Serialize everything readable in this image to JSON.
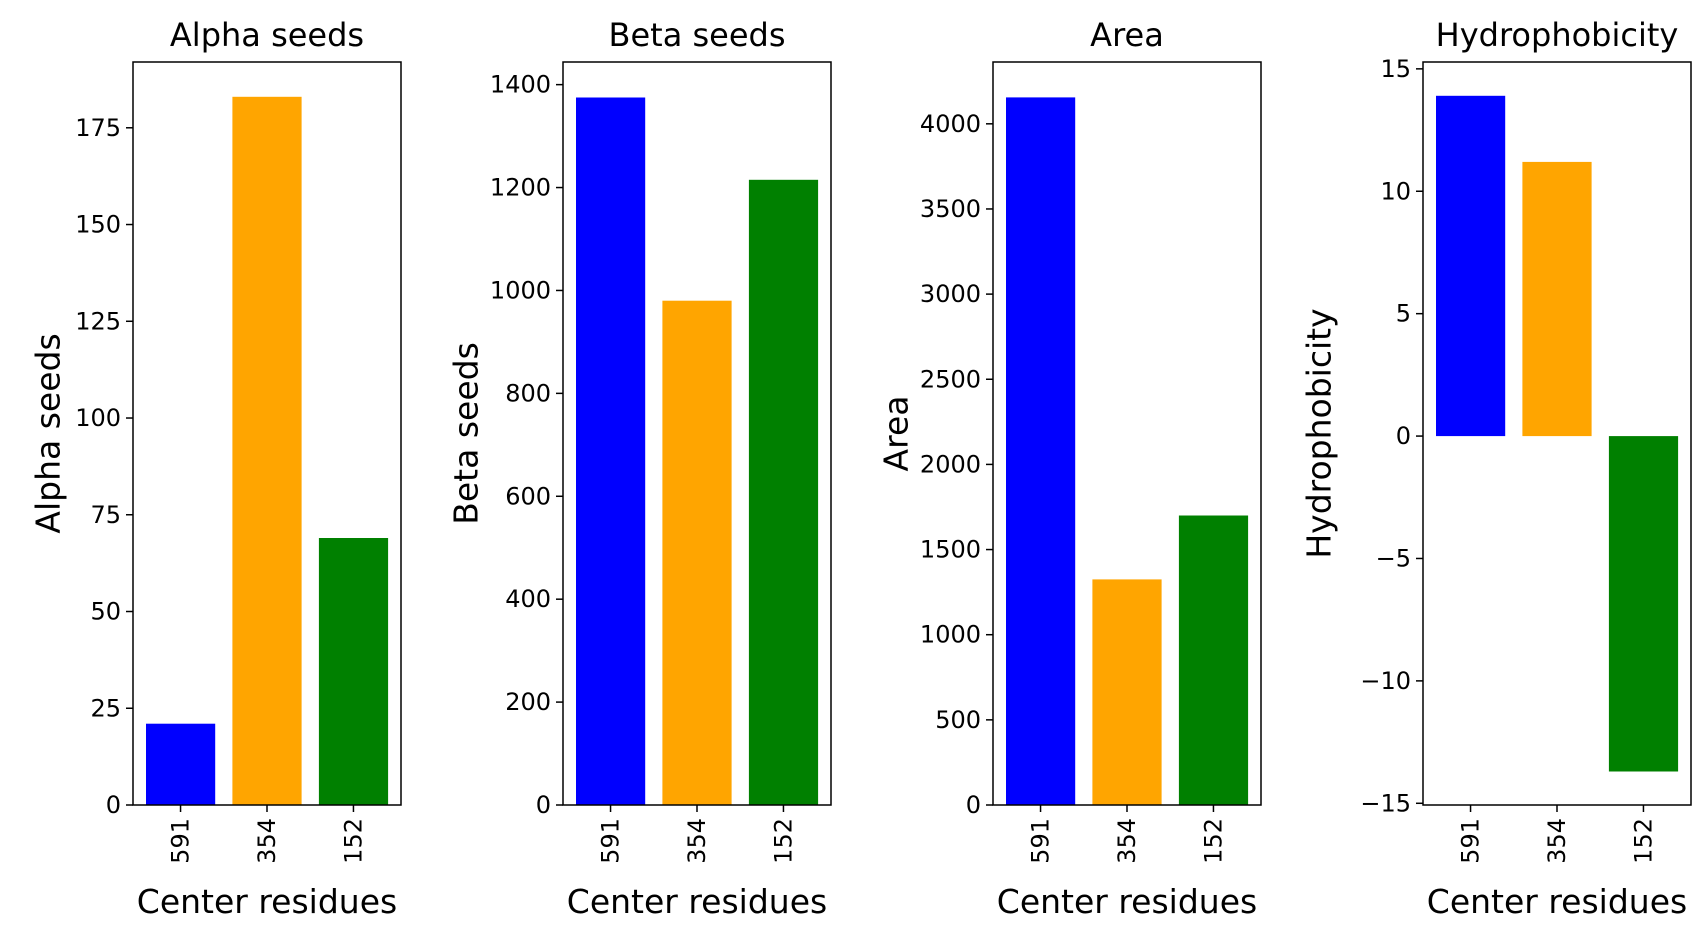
{
  "colors": {
    "bar_1": "#0000ff",
    "bar_2": "#ffa500",
    "bar_3": "#008000",
    "axis": "#000000"
  },
  "chart_data": [
    {
      "type": "bar",
      "title": "Alpha seeds",
      "xlabel": "Center residues",
      "ylabel": "Alpha seeds",
      "categories": [
        "591",
        "354",
        "152"
      ],
      "values": [
        21,
        183,
        69
      ],
      "ylim": [
        0,
        192
      ],
      "yticks": [
        0,
        25,
        50,
        75,
        100,
        125,
        150,
        175
      ],
      "ytick_labels": [
        "0",
        "25",
        "50",
        "75",
        "100",
        "125",
        "150",
        "175"
      ],
      "grid": false
    },
    {
      "type": "bar",
      "title": "Beta seeds",
      "xlabel": "Center residues",
      "ylabel": "Beta seeds",
      "categories": [
        "591",
        "354",
        "152"
      ],
      "values": [
        1375,
        980,
        1215
      ],
      "ylim": [
        0,
        1444
      ],
      "yticks": [
        0,
        200,
        400,
        600,
        800,
        1000,
        1200,
        1400
      ],
      "ytick_labels": [
        "0",
        "200",
        "400",
        "600",
        "800",
        "1000",
        "1200",
        "1400"
      ],
      "grid": false
    },
    {
      "type": "bar",
      "title": "Area",
      "xlabel": "Center residues",
      "ylabel": "Area",
      "categories": [
        "591",
        "354",
        "152"
      ],
      "values": [
        4155,
        1325,
        1700
      ],
      "ylim": [
        0,
        4363
      ],
      "yticks": [
        0,
        500,
        1000,
        1500,
        2000,
        2500,
        3000,
        3500,
        4000
      ],
      "ytick_labels": [
        "0",
        "500",
        "1000",
        "1500",
        "2000",
        "2500",
        "3000",
        "3500",
        "4000"
      ],
      "grid": false
    },
    {
      "type": "bar",
      "title": "Hydrophobicity",
      "xlabel": "Center residues",
      "ylabel": "Hydrophobicity",
      "categories": [
        "591",
        "354",
        "152"
      ],
      "values": [
        13.9,
        11.2,
        -13.7
      ],
      "ylim": [
        -15.07,
        15.28
      ],
      "yticks": [
        -15,
        -10,
        -5,
        0,
        5,
        10,
        15
      ],
      "ytick_labels": [
        "−15",
        "−10",
        "−5",
        "0",
        "5",
        "10",
        "15"
      ],
      "grid": false
    }
  ]
}
